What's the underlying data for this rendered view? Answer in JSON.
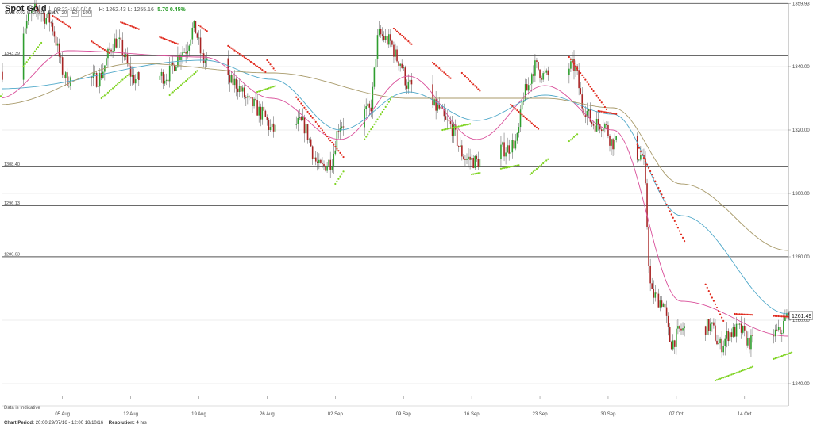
{
  "header": {
    "title": "Spot Gold",
    "timestamp": "09:22-18/10/16",
    "hlc": "H: 1262.43  L: 1255.16",
    "change": "5.70 0.45%"
  },
  "indicators": {
    "sar": {
      "label": "SAR",
      "params": [
        "0.02",
        "0.02",
        "0.2"
      ]
    },
    "ema": {
      "label": "EMA",
      "params": [
        "20",
        "50",
        "100"
      ]
    }
  },
  "footer": {
    "period_label": "Chart Period:",
    "period": "20:00 29/07/16 - 12:00 18/10/16",
    "resolution_label": "Resolution:",
    "resolution": "4 hrs"
  },
  "note": "Data is Indicative",
  "colors": {
    "up": "#2e9e2e",
    "down": "#a82424",
    "sar_above": "#e02a1e",
    "sar_below": "#7ed321",
    "ema20": "#d94f9a",
    "ema50": "#4fa8c9",
    "ema100": "#a89a6a",
    "grid": "#dddddd",
    "hline": "#555555"
  },
  "chart_data": {
    "type": "candlestick",
    "title": "Spot Gold",
    "y_axis_side": "right",
    "ylim": [
      1236,
      1360
    ],
    "y_ticks": [
      1240.0,
      1260.0,
      1280.0,
      1300.0,
      1320.0,
      1340.0,
      1359.93
    ],
    "y_tick_labels": [
      "1240.00",
      "1260.00",
      "1280.00",
      "1300.00",
      "1320.00",
      "1340.00",
      "1359.93"
    ],
    "current_price": 1261.49,
    "current_price_label": "1261.49",
    "x_tick_labels": [
      "05 Aug",
      "12 Aug",
      "19 Aug",
      "26 Aug",
      "02 Sep",
      "09 Sep",
      "16 Sep",
      "23 Sep",
      "30 Sep",
      "07 Oct",
      "14 Oct"
    ],
    "horizontal_levels": [
      {
        "value": 1359.93,
        "label": ""
      },
      {
        "value": 1343.39,
        "label": "1343.39"
      },
      {
        "value": 1308.4,
        "label": "1308.40"
      },
      {
        "value": 1296.13,
        "label": "1296.13"
      },
      {
        "value": 1280.03,
        "label": "1280.03"
      }
    ],
    "price_anchors": [
      {
        "date": "2016-07-29",
        "close": 1338
      },
      {
        "date": "2016-08-02",
        "close": 1358
      },
      {
        "date": "2016-08-03",
        "close": 1355
      },
      {
        "date": "2016-08-05",
        "close": 1336
      },
      {
        "date": "2016-08-08",
        "close": 1336
      },
      {
        "date": "2016-08-10",
        "close": 1348
      },
      {
        "date": "2016-08-12",
        "close": 1336
      },
      {
        "date": "2016-08-15",
        "close": 1337
      },
      {
        "date": "2016-08-17",
        "close": 1345
      },
      {
        "date": "2016-08-18",
        "close": 1352
      },
      {
        "date": "2016-08-19",
        "close": 1342
      },
      {
        "date": "2016-08-22",
        "close": 1335
      },
      {
        "date": "2016-08-24",
        "close": 1328
      },
      {
        "date": "2016-08-25",
        "close": 1325
      },
      {
        "date": "2016-08-26",
        "close": 1320
      },
      {
        "date": "2016-08-29",
        "close": 1322
      },
      {
        "date": "2016-08-31",
        "close": 1308
      },
      {
        "date": "2016-09-01",
        "close": 1310
      },
      {
        "date": "2016-09-02",
        "close": 1322
      },
      {
        "date": "2016-09-05",
        "close": 1326
      },
      {
        "date": "2016-09-06",
        "close": 1350
      },
      {
        "date": "2016-09-07",
        "close": 1348
      },
      {
        "date": "2016-09-08",
        "close": 1342
      },
      {
        "date": "2016-09-09",
        "close": 1334
      },
      {
        "date": "2016-09-12",
        "close": 1327
      },
      {
        "date": "2016-09-13",
        "close": 1322
      },
      {
        "date": "2016-09-15",
        "close": 1311
      },
      {
        "date": "2016-09-16",
        "close": 1310
      },
      {
        "date": "2016-09-19",
        "close": 1314
      },
      {
        "date": "2016-09-20",
        "close": 1316
      },
      {
        "date": "2016-09-21",
        "close": 1332
      },
      {
        "date": "2016-09-22",
        "close": 1340
      },
      {
        "date": "2016-09-23",
        "close": 1337
      },
      {
        "date": "2016-09-26",
        "close": 1340
      },
      {
        "date": "2016-09-27",
        "close": 1327
      },
      {
        "date": "2016-09-28",
        "close": 1322
      },
      {
        "date": "2016-09-29",
        "close": 1322
      },
      {
        "date": "2016-09-30",
        "close": 1316
      },
      {
        "date": "2016-10-03",
        "close": 1312
      },
      {
        "date": "2016-10-04",
        "close": 1268
      },
      {
        "date": "2016-10-05",
        "close": 1266
      },
      {
        "date": "2016-10-06",
        "close": 1253
      },
      {
        "date": "2016-10-07",
        "close": 1257
      },
      {
        "date": "2016-10-10",
        "close": 1258
      },
      {
        "date": "2016-10-11",
        "close": 1252
      },
      {
        "date": "2016-10-12",
        "close": 1256
      },
      {
        "date": "2016-10-13",
        "close": 1257
      },
      {
        "date": "2016-10-14",
        "close": 1253
      },
      {
        "date": "2016-10-17",
        "close": 1256
      },
      {
        "date": "2016-10-18",
        "close": 1261.49
      }
    ],
    "ema_anchors": {
      "ema20": [
        {
          "date": "2016-07-29",
          "value": 1330
        },
        {
          "date": "2016-08-05",
          "value": 1345
        },
        {
          "date": "2016-08-19",
          "value": 1343
        },
        {
          "date": "2016-08-26",
          "value": 1330
        },
        {
          "date": "2016-09-02",
          "value": 1317
        },
        {
          "date": "2016-09-09",
          "value": 1337
        },
        {
          "date": "2016-09-16",
          "value": 1317
        },
        {
          "date": "2016-09-23",
          "value": 1334
        },
        {
          "date": "2016-09-30",
          "value": 1320
        },
        {
          "date": "2016-10-07",
          "value": 1266
        },
        {
          "date": "2016-10-18",
          "value": 1255
        }
      ],
      "ema50": [
        {
          "date": "2016-07-29",
          "value": 1333
        },
        {
          "date": "2016-08-19",
          "value": 1342
        },
        {
          "date": "2016-08-26",
          "value": 1336
        },
        {
          "date": "2016-09-02",
          "value": 1320
        },
        {
          "date": "2016-09-09",
          "value": 1332
        },
        {
          "date": "2016-09-16",
          "value": 1323
        },
        {
          "date": "2016-09-23",
          "value": 1331
        },
        {
          "date": "2016-09-30",
          "value": 1325
        },
        {
          "date": "2016-10-07",
          "value": 1293
        },
        {
          "date": "2016-10-18",
          "value": 1262
        }
      ],
      "ema100": [
        {
          "date": "2016-07-29",
          "value": 1328
        },
        {
          "date": "2016-08-12",
          "value": 1341
        },
        {
          "date": "2016-08-26",
          "value": 1338
        },
        {
          "date": "2016-09-09",
          "value": 1330
        },
        {
          "date": "2016-09-23",
          "value": 1330
        },
        {
          "date": "2016-09-30",
          "value": 1327
        },
        {
          "date": "2016-10-07",
          "value": 1303
        },
        {
          "date": "2016-10-18",
          "value": 1282
        }
      ]
    }
  }
}
